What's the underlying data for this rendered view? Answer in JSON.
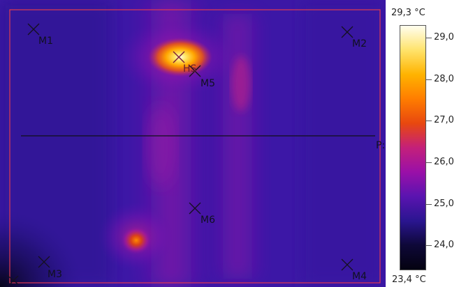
{
  "image": {
    "palette": "iron",
    "colorbar_stops": [
      "#fffef0",
      "#ffe36b",
      "#ffb300",
      "#ff7d00",
      "#e8480f",
      "#c4207a",
      "#9a10a8",
      "#5a14b0",
      "#2a1590",
      "#0e0838",
      "#040210"
    ]
  },
  "scale": {
    "max_label": "29,3 °C",
    "min_label": "23,4 °C",
    "unit": "°C",
    "max_value": 29.3,
    "min_value": 23.4,
    "ticks": [
      {
        "value": 29.0,
        "label": "29,0"
      },
      {
        "value": 28.0,
        "label": "28,0"
      },
      {
        "value": 27.0,
        "label": "27,0"
      },
      {
        "value": 26.0,
        "label": "26,0"
      },
      {
        "value": 25.0,
        "label": "25,0"
      },
      {
        "value": 24.0,
        "label": "24,0"
      }
    ]
  },
  "markers": [
    {
      "id": "M1",
      "label": "M1"
    },
    {
      "id": "M2",
      "label": "M2"
    },
    {
      "id": "M3",
      "label": "M3"
    },
    {
      "id": "M4",
      "label": "M4"
    },
    {
      "id": "M5",
      "label": "M5"
    },
    {
      "id": "M6",
      "label": "M6"
    },
    {
      "id": "HS",
      "label": "HS"
    }
  ],
  "profile_line": {
    "label": "P:"
  }
}
